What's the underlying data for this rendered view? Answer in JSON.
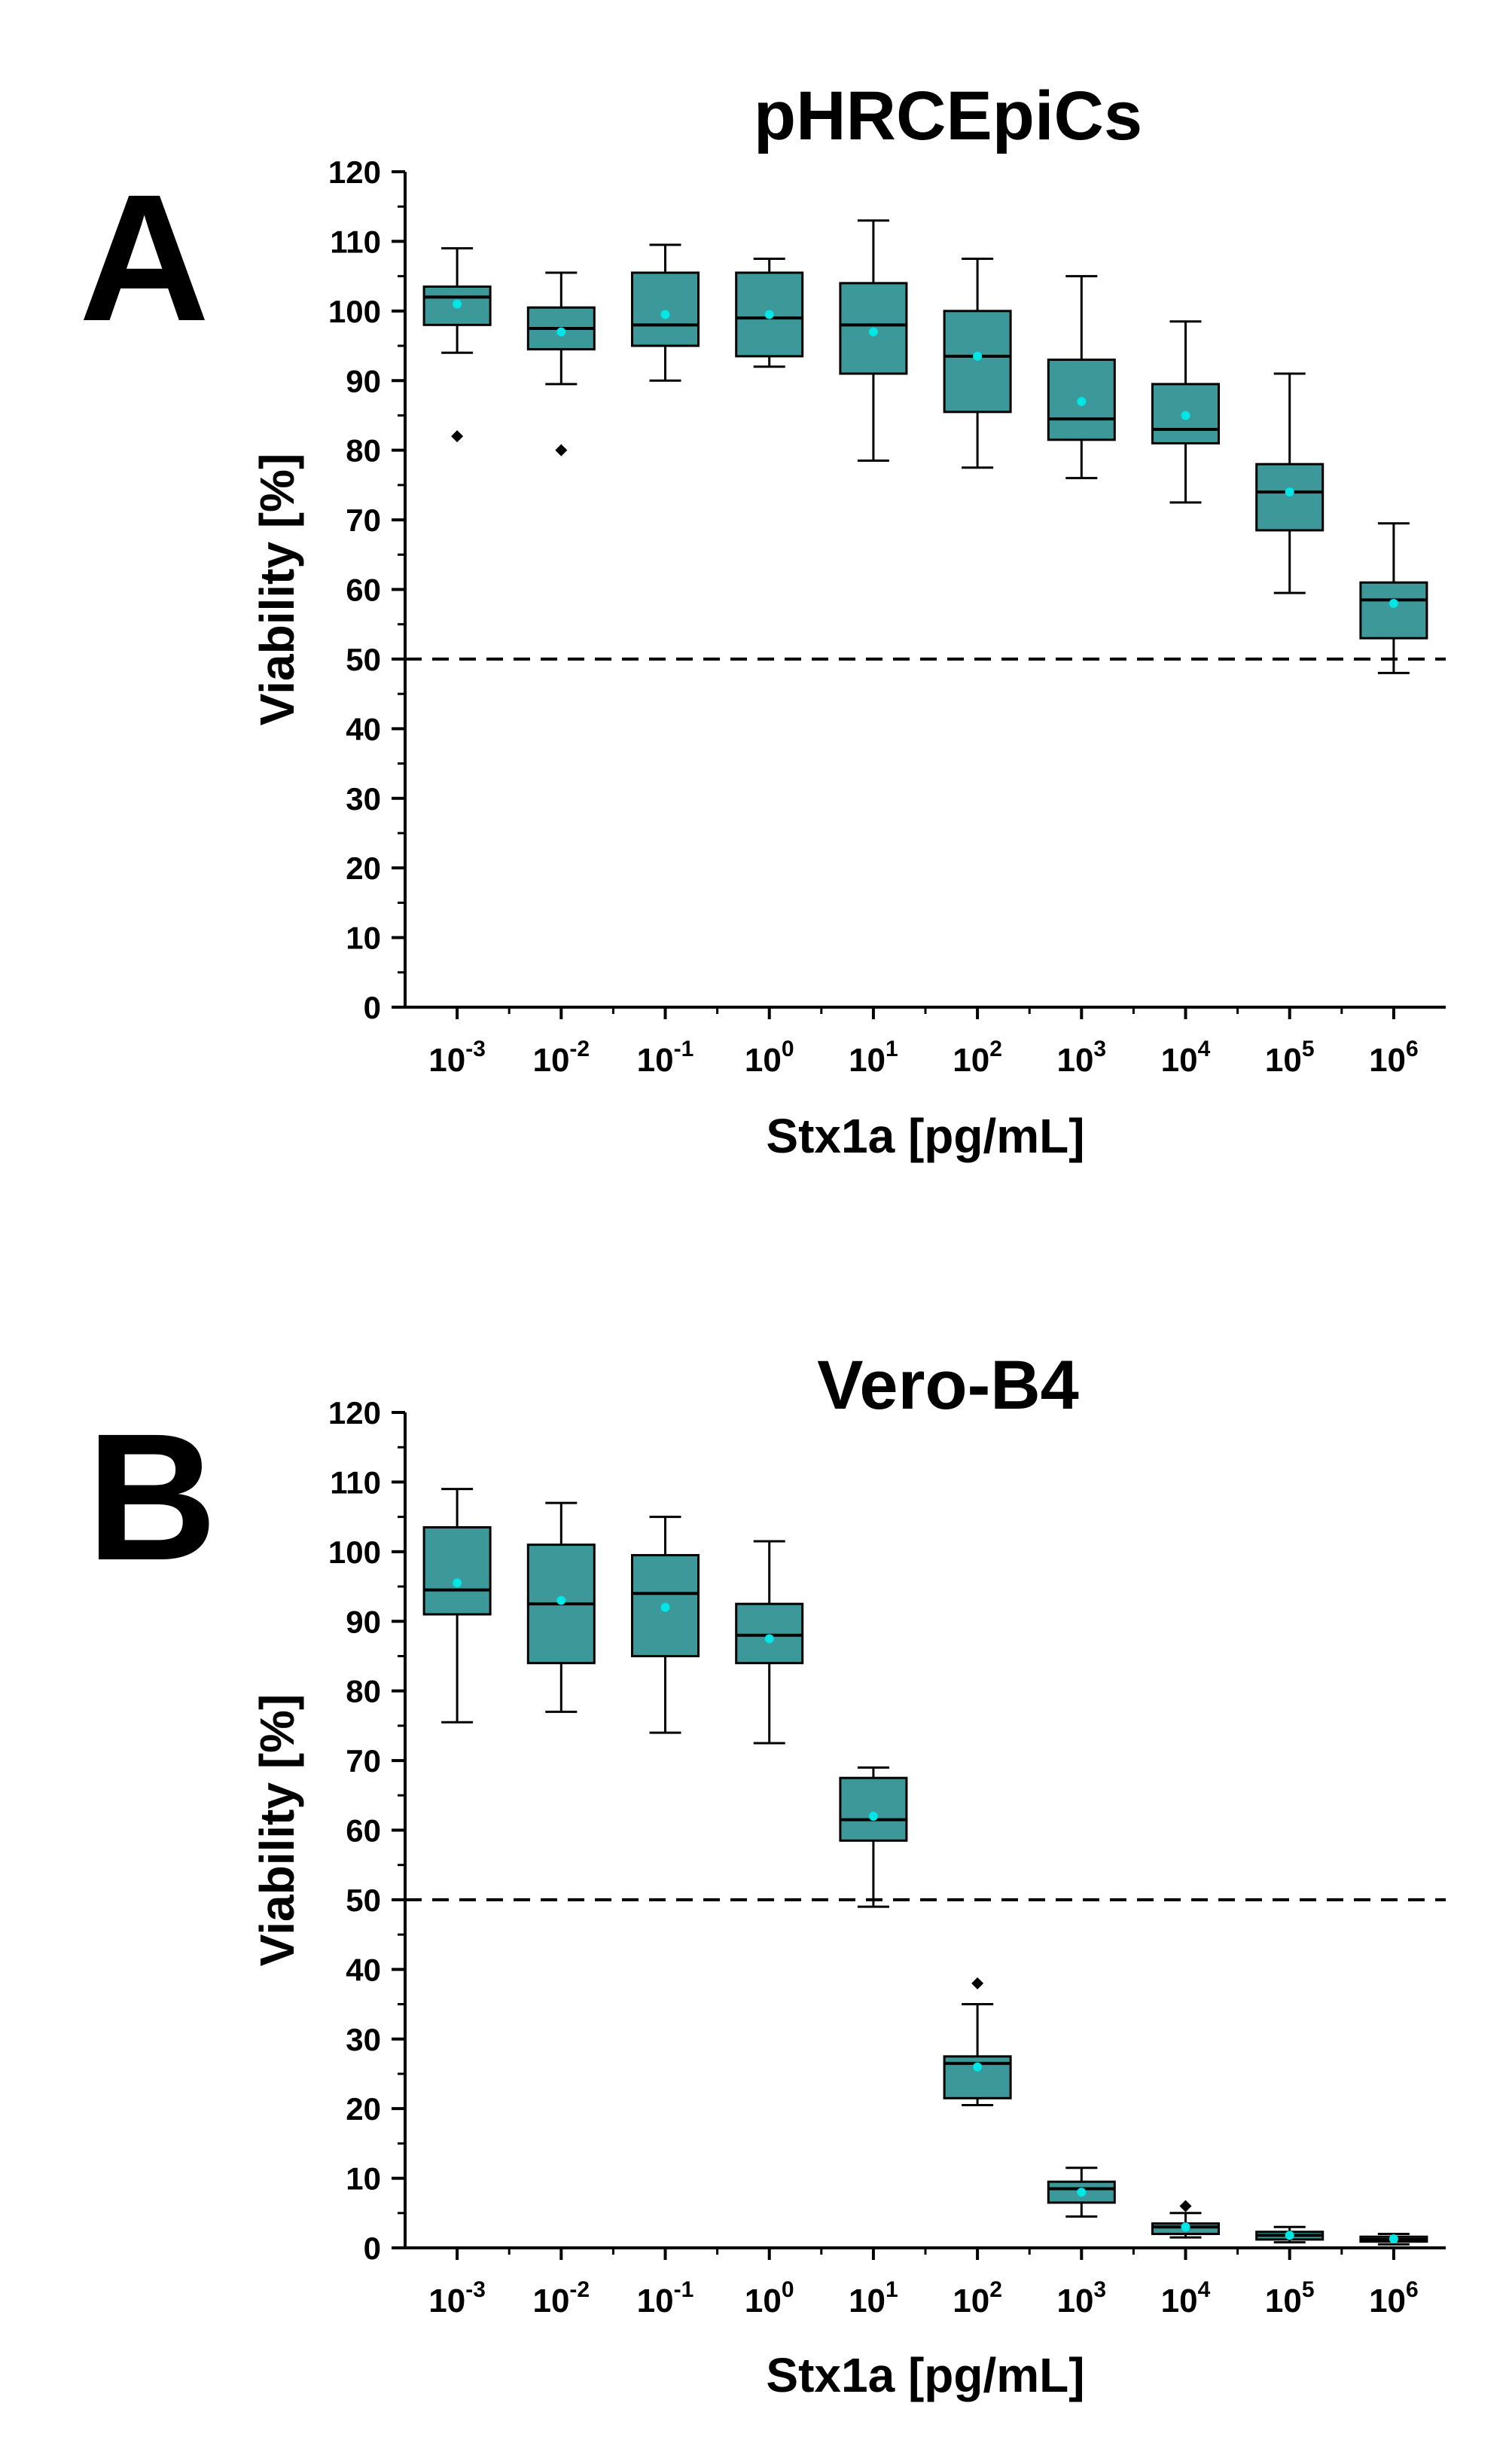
{
  "colors": {
    "box_fill": "#3d9999",
    "mean_marker": "#00e5e5",
    "outlier": "#000000",
    "axis": "#000000",
    "reference_line": "#000000"
  },
  "chart_data": [
    {
      "type": "box",
      "panel_label": "A",
      "title": "pHRCEpiCs",
      "xlabel": "Stx1a [pg/mL]",
      "ylabel": "Viability [%]",
      "ylim": [
        0,
        120
      ],
      "yticks": [
        "0",
        "10",
        "20",
        "30",
        "40",
        "50",
        "60",
        "70",
        "80",
        "90",
        "100",
        "110",
        "120"
      ],
      "reference_line": 50,
      "categories": [
        {
          "base": "10",
          "exp": "-3"
        },
        {
          "base": "10",
          "exp": "-2"
        },
        {
          "base": "10",
          "exp": "-1"
        },
        {
          "base": "10",
          "exp": "0"
        },
        {
          "base": "10",
          "exp": "1"
        },
        {
          "base": "10",
          "exp": "2"
        },
        {
          "base": "10",
          "exp": "3"
        },
        {
          "base": "10",
          "exp": "4"
        },
        {
          "base": "10",
          "exp": "5"
        },
        {
          "base": "10",
          "exp": "6"
        }
      ],
      "boxes": [
        {
          "min": 94,
          "q1": 98,
          "median": 102,
          "q3": 103.5,
          "max": 109,
          "mean": 101,
          "outliers": [
            82
          ]
        },
        {
          "min": 89.5,
          "q1": 94.5,
          "median": 97.5,
          "q3": 100.5,
          "max": 105.5,
          "mean": 97,
          "outliers": [
            80
          ]
        },
        {
          "min": 90,
          "q1": 95,
          "median": 98,
          "q3": 105.5,
          "max": 109.5,
          "mean": 99.5,
          "outliers": []
        },
        {
          "min": 92,
          "q1": 93.5,
          "median": 99,
          "q3": 105.5,
          "max": 107.5,
          "mean": 99.5,
          "outliers": []
        },
        {
          "min": 78.5,
          "q1": 91,
          "median": 98,
          "q3": 104,
          "max": 113,
          "mean": 97,
          "outliers": []
        },
        {
          "min": 77.5,
          "q1": 85.5,
          "median": 93.5,
          "q3": 100,
          "max": 107.5,
          "mean": 93.5,
          "outliers": []
        },
        {
          "min": 76,
          "q1": 81.5,
          "median": 84.5,
          "q3": 93,
          "max": 105,
          "mean": 87,
          "outliers": []
        },
        {
          "min": 72.5,
          "q1": 81,
          "median": 83,
          "q3": 89.5,
          "max": 98.5,
          "mean": 85,
          "outliers": []
        },
        {
          "min": 59.5,
          "q1": 68.5,
          "median": 74,
          "q3": 78,
          "max": 91,
          "mean": 74,
          "outliers": []
        },
        {
          "min": 48,
          "q1": 53,
          "median": 58.5,
          "q3": 61,
          "max": 69.5,
          "mean": 58,
          "outliers": []
        }
      ]
    },
    {
      "type": "box",
      "panel_label": "B",
      "title": "Vero-B4",
      "xlabel": "Stx1a [pg/mL]",
      "ylabel": "Viability [%]",
      "ylim": [
        0,
        120
      ],
      "yticks": [
        "0",
        "10",
        "20",
        "30",
        "40",
        "50",
        "60",
        "70",
        "80",
        "90",
        "100",
        "110",
        "120"
      ],
      "reference_line": 50,
      "categories": [
        {
          "base": "10",
          "exp": "-3"
        },
        {
          "base": "10",
          "exp": "-2"
        },
        {
          "base": "10",
          "exp": "-1"
        },
        {
          "base": "10",
          "exp": "0"
        },
        {
          "base": "10",
          "exp": "1"
        },
        {
          "base": "10",
          "exp": "2"
        },
        {
          "base": "10",
          "exp": "3"
        },
        {
          "base": "10",
          "exp": "4"
        },
        {
          "base": "10",
          "exp": "5"
        },
        {
          "base": "10",
          "exp": "6"
        }
      ],
      "boxes": [
        {
          "min": 75.5,
          "q1": 91,
          "median": 94.5,
          "q3": 103.5,
          "max": 109,
          "mean": 95.5,
          "outliers": []
        },
        {
          "min": 77,
          "q1": 84,
          "median": 92.5,
          "q3": 101,
          "max": 107,
          "mean": 93,
          "outliers": []
        },
        {
          "min": 74,
          "q1": 85,
          "median": 94,
          "q3": 99.5,
          "max": 105,
          "mean": 92,
          "outliers": []
        },
        {
          "min": 72.5,
          "q1": 84,
          "median": 88,
          "q3": 92.5,
          "max": 101.5,
          "mean": 87.5,
          "outliers": []
        },
        {
          "min": 49,
          "q1": 58.5,
          "median": 61.5,
          "q3": 67.5,
          "max": 69,
          "mean": 62,
          "outliers": []
        },
        {
          "min": 20.5,
          "q1": 21.5,
          "median": 26.5,
          "q3": 27.5,
          "max": 35,
          "mean": 26,
          "outliers": [
            38
          ]
        },
        {
          "min": 4.5,
          "q1": 6.5,
          "median": 8.5,
          "q3": 9.5,
          "max": 11.5,
          "mean": 8,
          "outliers": []
        },
        {
          "min": 1.5,
          "q1": 2,
          "median": 3,
          "q3": 3.5,
          "max": 5,
          "mean": 3,
          "outliers": [
            6
          ]
        },
        {
          "min": 0.8,
          "q1": 1.2,
          "median": 1.8,
          "q3": 2.3,
          "max": 3,
          "mean": 1.8,
          "outliers": []
        },
        {
          "min": 0.5,
          "q1": 0.9,
          "median": 1.2,
          "q3": 1.6,
          "max": 2,
          "mean": 1.3,
          "outliers": []
        }
      ]
    }
  ]
}
